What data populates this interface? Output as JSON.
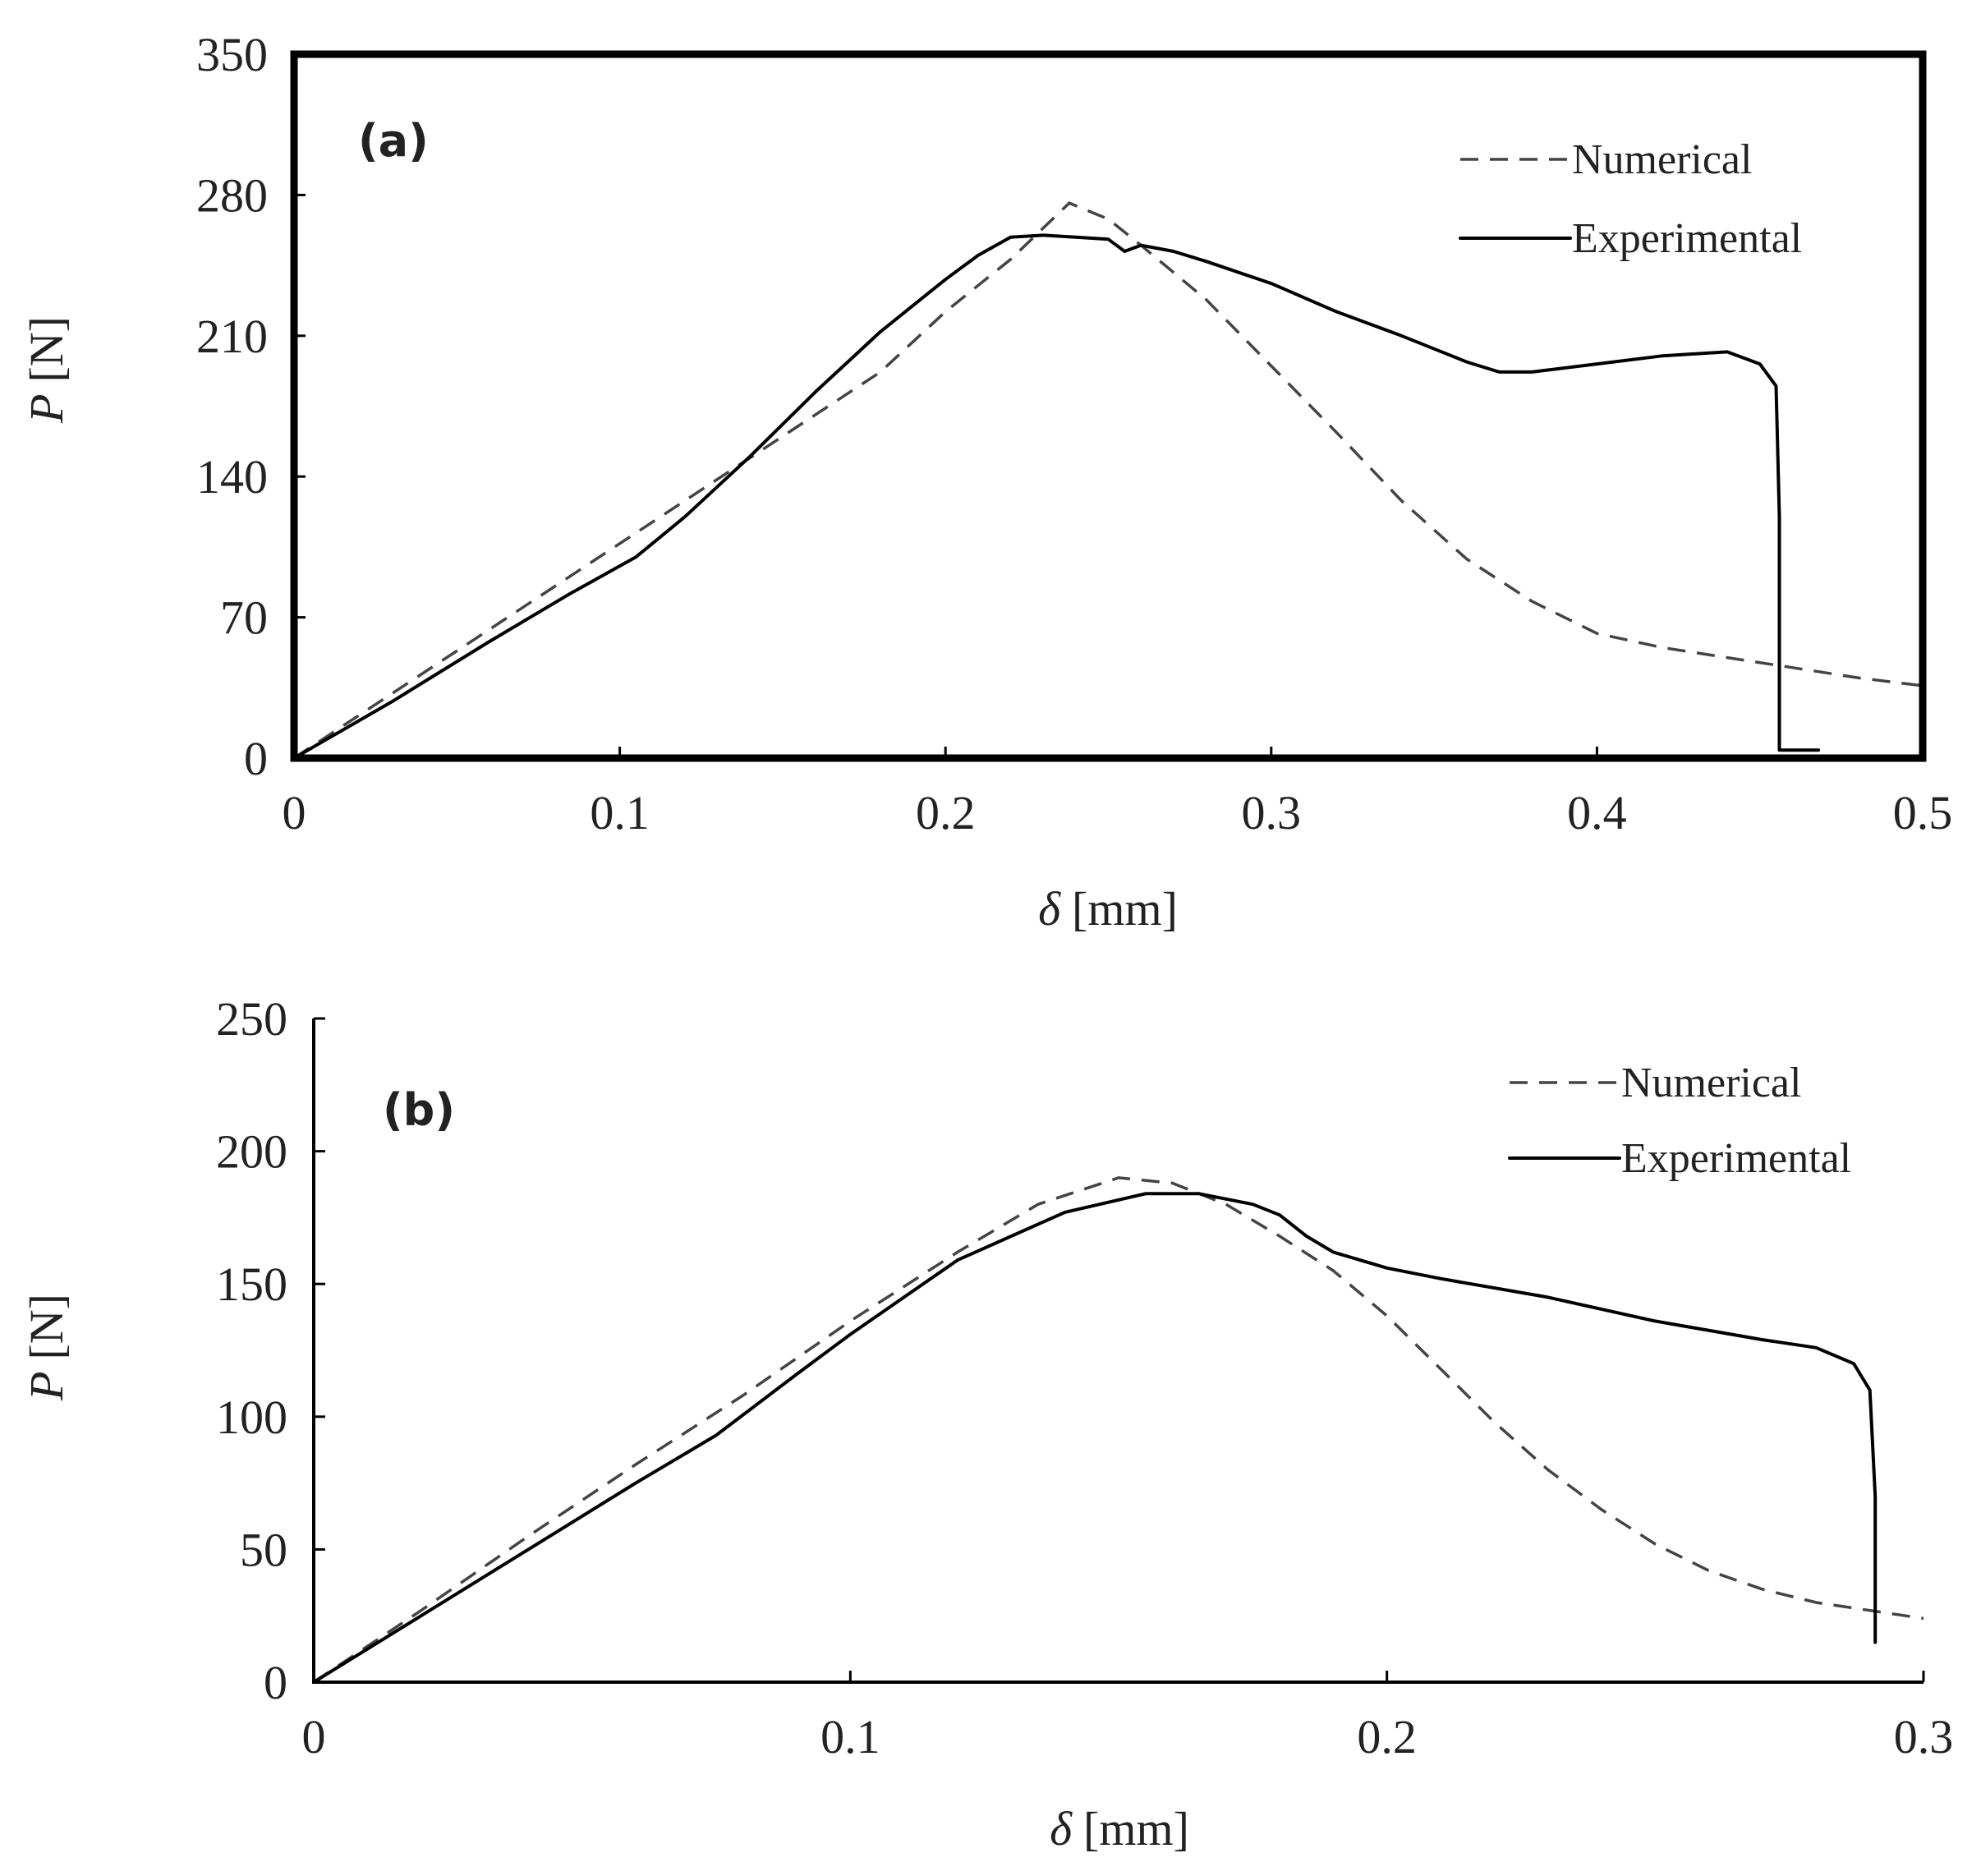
{
  "chart_data": [
    {
      "type": "line",
      "panel_label": "(a)",
      "xlabel_symbol": "δ",
      "xlabel_unit": "[mm]",
      "ylabel_symbol": "P",
      "ylabel_unit": "[N]",
      "xlim": [
        0,
        0.5
      ],
      "ylim": [
        0,
        350
      ],
      "xticks": [
        0,
        0.1,
        0.2,
        0.3,
        0.4,
        0.5
      ],
      "xtick_labels": [
        "0",
        "0.1",
        "0.2",
        "0.3",
        "0.4",
        "0.5"
      ],
      "yticks": [
        0,
        70,
        140,
        210,
        280,
        350
      ],
      "ytick_labels": [
        "0",
        "70",
        "140",
        "210",
        "280",
        "350"
      ],
      "legend_position": "top-right",
      "series": [
        {
          "name": "Numerical",
          "style": "dashed",
          "x": [
            0,
            0.03,
            0.06,
            0.09,
            0.12,
            0.15,
            0.18,
            0.2,
            0.22,
            0.238,
            0.25,
            0.26,
            0.28,
            0.3,
            0.32,
            0.34,
            0.36,
            0.38,
            0.4,
            0.42,
            0.44,
            0.46,
            0.48,
            0.5
          ],
          "y": [
            0,
            32,
            64,
            96,
            128,
            160,
            192,
            222,
            248,
            276,
            268,
            255,
            228,
            195,
            162,
            128,
            99,
            78,
            62,
            55,
            50,
            45,
            40,
            36
          ]
        },
        {
          "name": "Experimental",
          "style": "solid",
          "x": [
            0,
            0.03,
            0.06,
            0.085,
            0.105,
            0.12,
            0.14,
            0.16,
            0.18,
            0.2,
            0.21,
            0.22,
            0.23,
            0.24,
            0.25,
            0.255,
            0.26,
            0.27,
            0.28,
            0.3,
            0.32,
            0.34,
            0.36,
            0.37,
            0.38,
            0.4,
            0.42,
            0.44,
            0.45,
            0.455,
            0.456,
            0.456,
            0.468
          ],
          "y": [
            0,
            28,
            58,
            82,
            100,
            120,
            150,
            182,
            212,
            238,
            250,
            259,
            260,
            259,
            258,
            252,
            255,
            252,
            247,
            236,
            222,
            210,
            197,
            192,
            192,
            196,
            200,
            202,
            196,
            185,
            120,
            4,
            4
          ]
        }
      ]
    },
    {
      "type": "line",
      "panel_label": "(b)",
      "xlabel_symbol": "δ",
      "xlabel_unit": "[mm]",
      "ylabel_symbol": "P",
      "ylabel_unit": "[N]",
      "xlim": [
        0,
        0.3
      ],
      "ylim": [
        0,
        250
      ],
      "xticks": [
        0,
        0.1,
        0.2,
        0.3
      ],
      "xtick_labels": [
        "0",
        "0.1",
        "0.2",
        "0.3"
      ],
      "yticks": [
        0,
        50,
        100,
        150,
        200,
        250
      ],
      "ytick_labels": [
        "0",
        "50",
        "100",
        "150",
        "200",
        "250"
      ],
      "legend_position": "top-right",
      "series": [
        {
          "name": "Numerical",
          "style": "dashed",
          "x": [
            0,
            0.02,
            0.04,
            0.06,
            0.08,
            0.1,
            0.12,
            0.135,
            0.15,
            0.16,
            0.17,
            0.18,
            0.19,
            0.2,
            0.21,
            0.22,
            0.23,
            0.24,
            0.25,
            0.26,
            0.27,
            0.28,
            0.29,
            0.3
          ],
          "y": [
            0,
            27,
            55,
            82,
            108,
            136,
            162,
            180,
            190,
            188,
            180,
            168,
            155,
            138,
            118,
            98,
            80,
            65,
            52,
            42,
            35,
            30,
            27,
            24
          ]
        },
        {
          "name": "Experimental",
          "style": "solid",
          "x": [
            0,
            0.02,
            0.04,
            0.06,
            0.075,
            0.09,
            0.1,
            0.12,
            0.14,
            0.155,
            0.165,
            0.175,
            0.18,
            0.185,
            0.19,
            0.2,
            0.21,
            0.23,
            0.25,
            0.27,
            0.28,
            0.287,
            0.29,
            0.291,
            0.291
          ],
          "y": [
            0,
            25,
            50,
            75,
            93,
            116,
            131,
            159,
            177,
            184,
            184,
            180,
            176,
            168,
            162,
            156,
            152,
            145,
            136,
            129,
            126,
            120,
            110,
            70,
            15
          ]
        }
      ]
    }
  ]
}
